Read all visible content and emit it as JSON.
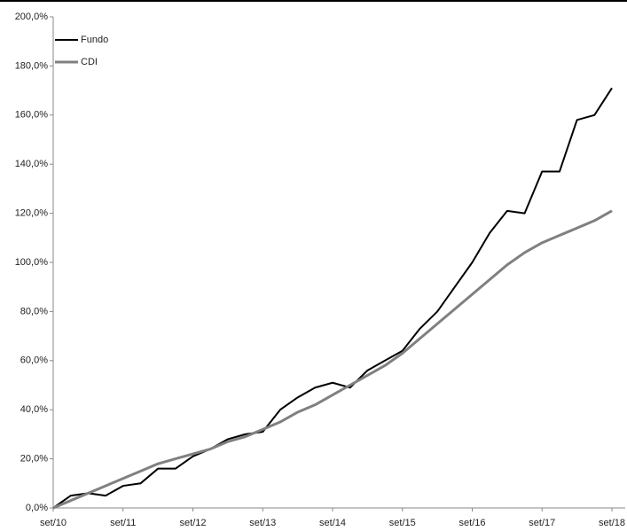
{
  "chart_data": {
    "type": "line",
    "categories": [
      "set/10",
      null,
      null,
      null,
      "set/11",
      null,
      null,
      null,
      "set/12",
      null,
      null,
      null,
      "set/13",
      null,
      null,
      null,
      "set/14",
      null,
      null,
      null,
      "set/15",
      null,
      null,
      null,
      "set/16",
      null,
      null,
      null,
      "set/17",
      null,
      null,
      null,
      "set/18"
    ],
    "series": [
      {
        "name": "Fundo",
        "color": "#000000",
        "values": [
          0,
          5,
          6,
          5,
          9,
          10,
          16,
          16,
          21,
          24,
          28,
          30,
          31,
          40,
          45,
          49,
          51,
          49,
          56,
          60,
          64,
          73,
          80,
          90,
          100,
          112,
          121,
          120,
          137,
          137,
          158,
          160,
          171
        ]
      },
      {
        "name": "CDI",
        "color": "#808080",
        "values": [
          0,
          3,
          6,
          9,
          12,
          15,
          18,
          20,
          22,
          24,
          27,
          29,
          32,
          35,
          39,
          42,
          46,
          50,
          54,
          58,
          63,
          69,
          75,
          81,
          87,
          93,
          99,
          104,
          108,
          111,
          114,
          117,
          121
        ]
      }
    ],
    "ylim": [
      0,
      200
    ],
    "yticks": [
      {
        "value": 0,
        "label": "0,0%"
      },
      {
        "value": 20,
        "label": "20,0%"
      },
      {
        "value": 40,
        "label": "40,0%"
      },
      {
        "value": 60,
        "label": "60,0%"
      },
      {
        "value": 80,
        "label": "80,0%"
      },
      {
        "value": 100,
        "label": "100,0%"
      },
      {
        "value": 120,
        "label": "120,0%"
      },
      {
        "value": 140,
        "label": "140,0%"
      },
      {
        "value": 160,
        "label": "160,0%"
      },
      {
        "value": 180,
        "label": "180,0%"
      },
      {
        "value": 200,
        "label": "200,0%"
      }
    ],
    "grid": false,
    "legend": "top-left"
  }
}
